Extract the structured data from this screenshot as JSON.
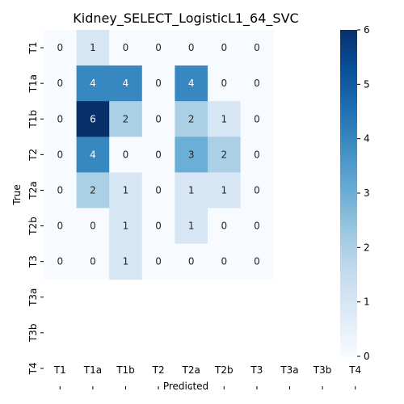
{
  "chart_data": {
    "type": "heatmap",
    "title": "Kidney_SELECT_LogisticL1_64_SVC",
    "xlabel": "Predicted",
    "ylabel": "True",
    "x_categories": [
      "T1",
      "T1a",
      "T1b",
      "T2",
      "T2a",
      "T2b",
      "T3",
      "T3a",
      "T3b",
      "T4"
    ],
    "y_categories": [
      "T1",
      "T1a",
      "T1b",
      "T2",
      "T2a",
      "T2b",
      "T3",
      "T3a",
      "T3b",
      "T4"
    ],
    "values": [
      [
        0,
        1,
        0,
        0,
        0,
        0,
        0,
        null,
        null,
        null
      ],
      [
        0,
        4,
        4,
        0,
        4,
        0,
        0,
        null,
        null,
        null
      ],
      [
        0,
        6,
        2,
        0,
        2,
        1,
        0,
        null,
        null,
        null
      ],
      [
        0,
        4,
        0,
        0,
        3,
        2,
        0,
        null,
        null,
        null
      ],
      [
        0,
        2,
        1,
        0,
        1,
        1,
        0,
        null,
        null,
        null
      ],
      [
        0,
        0,
        1,
        0,
        1,
        0,
        0,
        null,
        null,
        null
      ],
      [
        0,
        0,
        1,
        0,
        0,
        0,
        0,
        null,
        null,
        null
      ],
      [
        null,
        null,
        null,
        null,
        null,
        null,
        null,
        null,
        null,
        null
      ],
      [
        null,
        null,
        null,
        null,
        null,
        null,
        null,
        null,
        null,
        null
      ],
      [
        null,
        null,
        null,
        null,
        null,
        null,
        null,
        null,
        null,
        null
      ]
    ],
    "colorbar": {
      "min": 0,
      "max": 6,
      "ticks": [
        "0",
        "1",
        "2",
        "3",
        "4",
        "5",
        "6"
      ],
      "colormap": "Blues",
      "low_color": "#f7fbff",
      "high_color": "#08306b"
    },
    "grid": false,
    "annotated": true
  }
}
